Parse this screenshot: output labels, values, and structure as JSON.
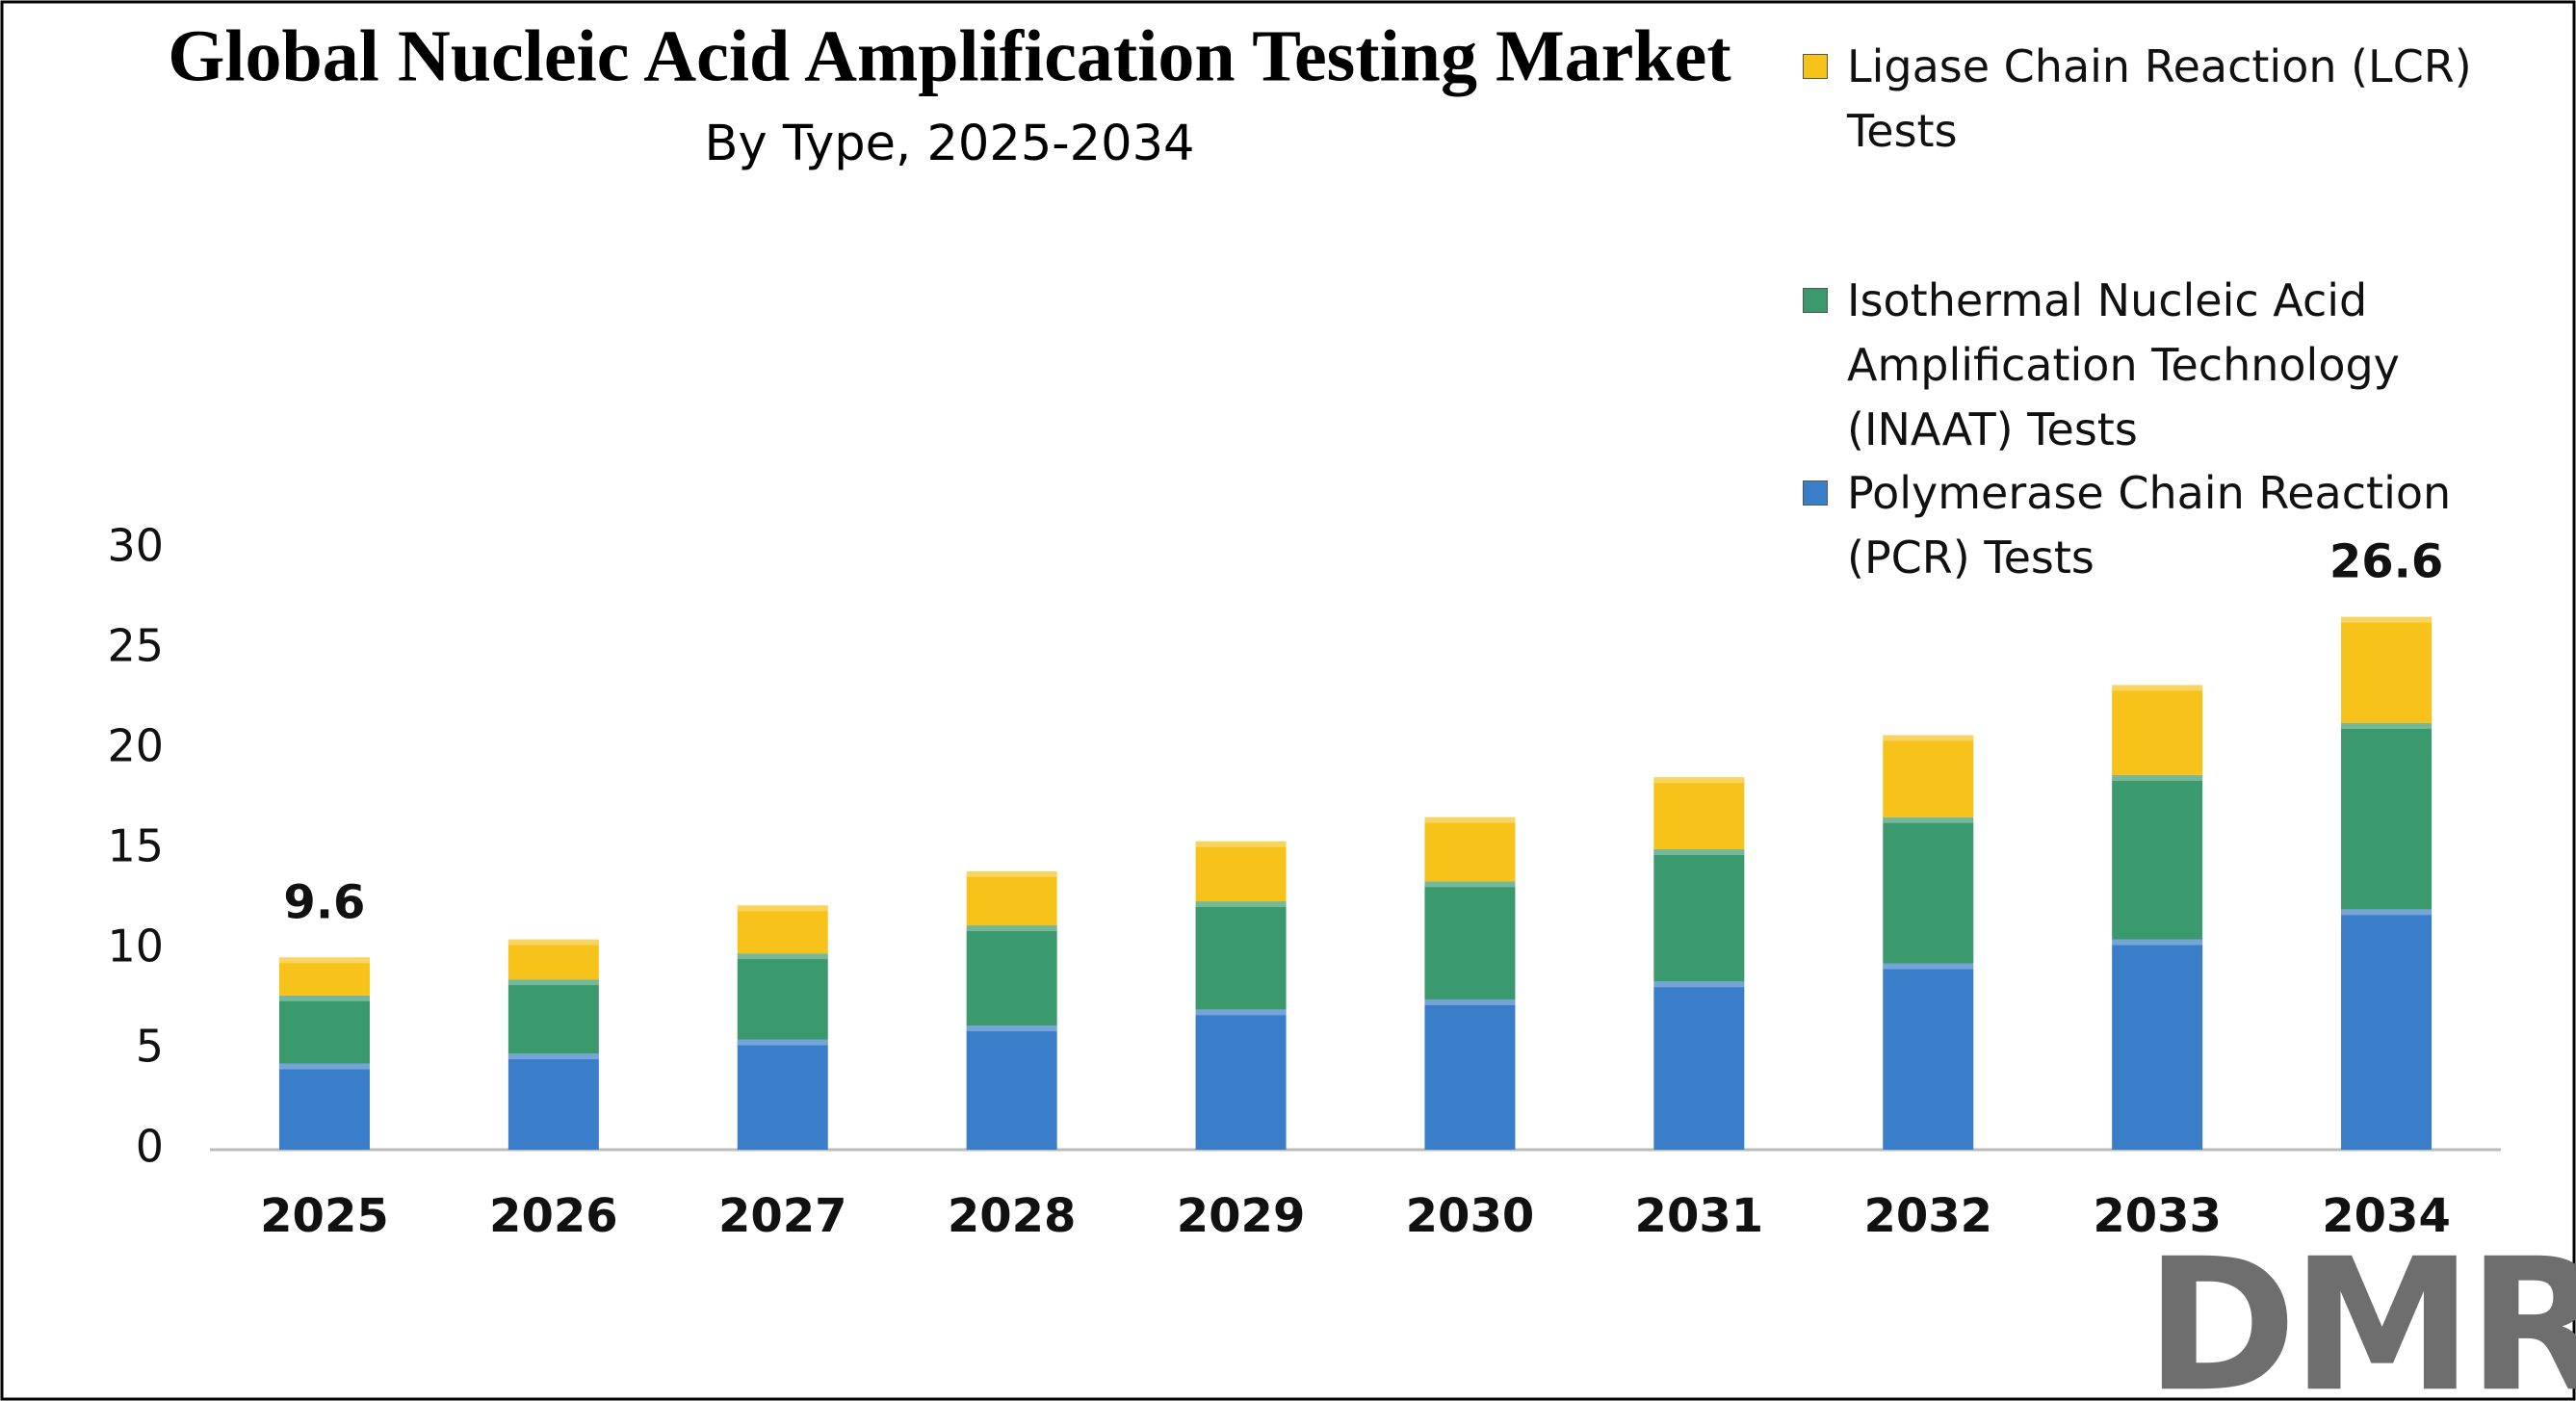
{
  "chart_data": {
    "type": "stacked_bar",
    "title": "Global Nucleic Acid Amplification Testing Market",
    "subtitle": "By Type, 2025-2034",
    "categories": [
      "2025",
      "2026",
      "2027",
      "2028",
      "2029",
      "2030",
      "2031",
      "2032",
      "2033",
      "2034"
    ],
    "series": [
      {
        "name": "Polymerase Chain Reaction (PCR) Tests",
        "color": "#3a7dc9",
        "values": [
          4.3,
          4.8,
          5.5,
          6.2,
          7.0,
          7.5,
          8.4,
          9.3,
          10.5,
          12.0
        ]
      },
      {
        "name": "Isothermal Nucleic Acid Amplification Technology (INAAT) Tests",
        "color": "#3a9a6e",
        "values": [
          3.4,
          3.7,
          4.3,
          5.0,
          5.4,
          5.9,
          6.6,
          7.3,
          8.2,
          9.3
        ]
      },
      {
        "name": "Ligase Chain Reaction (LCR) Tests",
        "color": "#f7c31a",
        "values": [
          1.9,
          2.0,
          2.4,
          2.7,
          3.0,
          3.2,
          3.6,
          4.1,
          4.5,
          5.3
        ]
      }
    ],
    "annotations": [
      {
        "x": "2025",
        "value": 9.6
      },
      {
        "x": "2034",
        "value": 26.6
      }
    ],
    "ylim": [
      0,
      30
    ],
    "yticks": [
      0,
      5,
      10,
      15,
      20,
      25,
      30
    ],
    "grid": false,
    "legend": "top-right",
    "logo": "DMR"
  }
}
